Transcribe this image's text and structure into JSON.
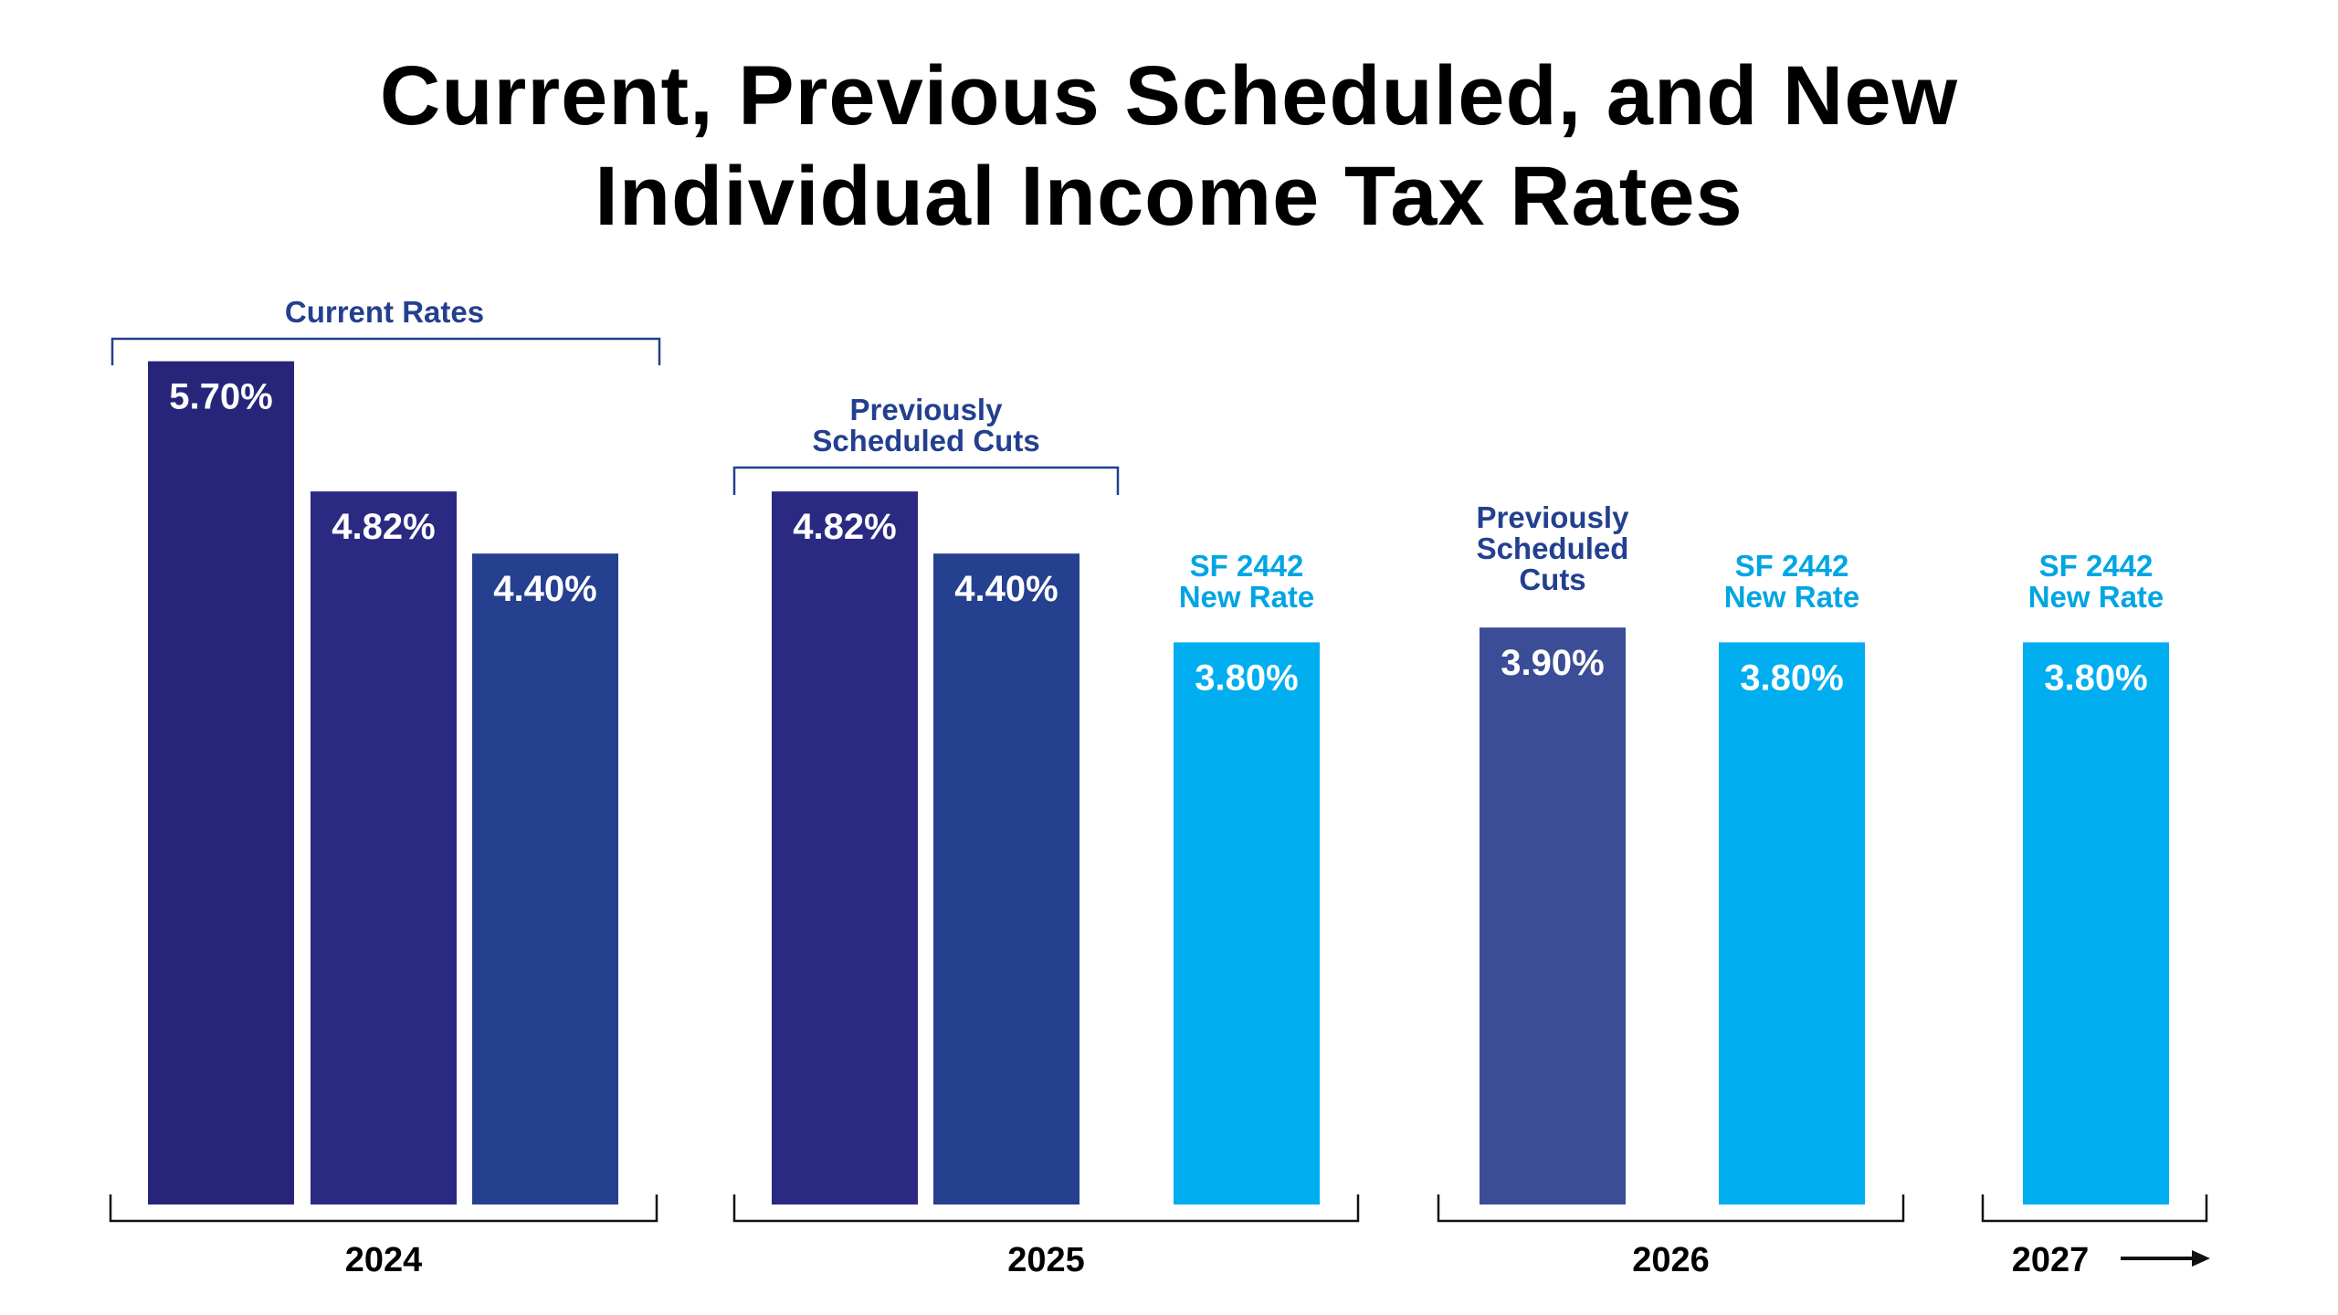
{
  "title_lines": [
    "Current, Previous Scheduled, and New",
    "Individual Income Tax Rates"
  ],
  "chart_data": {
    "type": "bar",
    "title": "Current, Previous Scheduled, and New Individual Income Tax Rates",
    "unit": "%",
    "grid": false,
    "groups": [
      {
        "year": "2024",
        "bars": [
          {
            "value": 5.7,
            "label": "5.70%",
            "color": "#27257a"
          },
          {
            "value": 4.82,
            "label": "4.82%",
            "color": "#2a2a82"
          },
          {
            "value": 4.4,
            "label": "4.40%",
            "color": "#25408f"
          }
        ]
      },
      {
        "year": "2025",
        "bars": [
          {
            "value": 4.82,
            "label": "4.82%",
            "color": "#2a2a82"
          },
          {
            "value": 4.4,
            "label": "4.40%",
            "color": "#25408f"
          },
          {
            "value": 3.8,
            "label": "3.80%",
            "color": "#00aeef"
          }
        ]
      },
      {
        "year": "2026",
        "bars": [
          {
            "value": 3.9,
            "label": "3.90%",
            "color": "#3c4d97"
          },
          {
            "value": 3.8,
            "label": "3.80%",
            "color": "#00aeef"
          }
        ]
      },
      {
        "year": "2027",
        "bars": [
          {
            "value": 3.8,
            "label": "3.80%",
            "color": "#00aeef"
          }
        ]
      }
    ],
    "annotations": [
      {
        "lines": [
          "Current Rates"
        ],
        "color": "#23408f"
      },
      {
        "lines": [
          "Previously",
          "Scheduled Cuts"
        ],
        "color": "#23408f"
      },
      {
        "lines": [
          "SF 2442",
          "New Rate"
        ],
        "color": "#00a5e3"
      },
      {
        "lines": [
          "Previously",
          "Scheduled",
          "Cuts"
        ],
        "color": "#23408f"
      },
      {
        "lines": [
          "SF 2442",
          "New Rate"
        ],
        "color": "#00a5e3"
      },
      {
        "lines": [
          "SF 2442",
          "New Rate"
        ],
        "color": "#00a5e3"
      }
    ],
    "year_2027_arrow": "right-arrow-icon"
  }
}
